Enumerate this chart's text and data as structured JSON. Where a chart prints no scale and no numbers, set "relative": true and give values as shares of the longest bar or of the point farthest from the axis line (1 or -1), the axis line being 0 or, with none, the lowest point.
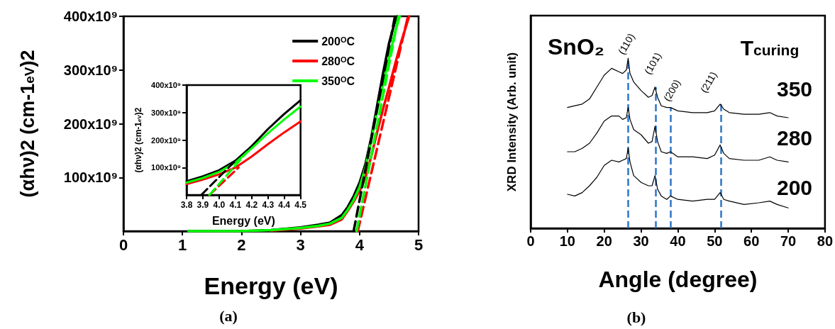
{
  "chart_data": [
    {
      "type": "line",
      "xlabel": "Energy (eV)",
      "ylabel": "(αhν)2 (cm-1$_{eV}$)2",
      "xlim": [
        0,
        5
      ],
      "xticks": [
        0,
        1,
        2,
        3,
        4,
        5
      ],
      "ylim": [
        0,
        400000000000.0
      ],
      "yticks": [
        {
          "value": 100000000000.0,
          "label": "100x10⁹"
        },
        {
          "value": 200000000000.0,
          "label": "200x10⁹"
        },
        {
          "value": 300000000000.0,
          "label": "300x10⁹"
        },
        {
          "value": 400000000000.0,
          "label": "400x10⁹"
        }
      ],
      "legend": "top right",
      "marker": "none",
      "annotations": [
        "(a)"
      ],
      "series": [
        {
          "name": "200$^{O}$C",
          "color": "#000000",
          "x": [
            1.1,
            1.5,
            2,
            2.5,
            3,
            3.3,
            3.5,
            3.7,
            3.8,
            3.9,
            4.0,
            4.1,
            4.2,
            4.3,
            4.4,
            4.5,
            4.6,
            4.64
          ],
          "values": [
            0,
            0,
            0,
            2000000000.0,
            7000000000.0,
            12000000000.0,
            16000000000.0,
            30000000000.0,
            45000000000.0,
            65000000000.0,
            90000000000.0,
            125000000000.0,
            175000000000.0,
            235000000000.0,
            295000000000.0,
            350000000000.0,
            390000000000.0,
            400000000000.0
          ]
        },
        {
          "name": "280$^{O}$C",
          "color": "#ff0000",
          "x": [
            2.5,
            3,
            3.3,
            3.5,
            3.7,
            3.8,
            3.9,
            4.0,
            4.1,
            4.2,
            4.3,
            4.4,
            4.5,
            4.6,
            4.7,
            4.84
          ],
          "values": [
            1000000000.0,
            5000000000.0,
            9000000000.0,
            12000000000.0,
            22000000000.0,
            38000000000.0,
            55000000000.0,
            75000000000.0,
            100000000000.0,
            140000000000.0,
            185000000000.0,
            228000000000.0,
            268000000000.0,
            310000000000.0,
            350000000000.0,
            400000000000.0
          ]
        },
        {
          "name": "350$^{O}$C",
          "color": "#00ff00",
          "x": [
            1.1,
            1.5,
            2,
            2.5,
            3,
            3.3,
            3.5,
            3.7,
            3.8,
            3.9,
            4.0,
            4.1,
            4.2,
            4.3,
            4.4,
            4.5,
            4.6,
            4.68
          ],
          "values": [
            0,
            0,
            0,
            2000000000.0,
            6000000000.0,
            10000000000.0,
            14000000000.0,
            25000000000.0,
            40000000000.0,
            58000000000.0,
            82000000000.0,
            118000000000.0,
            170000000000.0,
            225000000000.0,
            275000000000.0,
            322000000000.0,
            370000000000.0,
            400000000000.0
          ]
        },
        {
          "color": "#000000",
          "line_style": "dashed",
          "x": [
            3.9,
            4.6
          ],
          "values": [
            0,
            400000000000.0
          ]
        },
        {
          "color": "#ff0000",
          "line_style": "dashed",
          "x": [
            3.97,
            4.82
          ],
          "values": [
            0,
            400000000000.0
          ]
        },
        {
          "color": "#00ff00",
          "line_style": "dashed",
          "x": [
            3.95,
            4.66
          ],
          "values": [
            0,
            400000000000.0
          ]
        }
      ]
    },
    {
      "type": "line",
      "xlabel": "Energy (eV)",
      "ylabel": "(αhν)2 (cm-1$_{eV}$)2",
      "xlim": [
        3.8,
        4.5
      ],
      "xticks": [
        3.8,
        3.9,
        {
          "value": 4,
          "label": "4.0"
        },
        4.1,
        4.2,
        4.3,
        4.4,
        4.5
      ],
      "ylim": [
        0,
        400000000000.0
      ],
      "yticks": [
        {
          "value": 100000000000.0,
          "label": "100x10⁹"
        },
        {
          "value": 200000000000.0,
          "label": "200x10⁹"
        },
        {
          "value": 300000000000.0,
          "label": "300x10⁹"
        },
        {
          "value": 400000000000.0,
          "label": "400x10⁹"
        }
      ],
      "marker": "none",
      "series": [
        {
          "color": "#000000",
          "x": [
            3.8,
            3.9,
            4.0,
            4.1,
            4.2,
            4.3,
            4.4,
            4.5
          ],
          "values": [
            50000000000.0,
            68000000000.0,
            90000000000.0,
            125000000000.0,
            178000000000.0,
            240000000000.0,
            295000000000.0,
            345000000000.0
          ]
        },
        {
          "color": "#ff0000",
          "x": [
            3.8,
            3.9,
            4.0,
            4.1,
            4.2,
            4.3,
            4.4,
            4.5
          ],
          "values": [
            40000000000.0,
            56000000000.0,
            75000000000.0,
            100000000000.0,
            140000000000.0,
            185000000000.0,
            228000000000.0,
            268000000000.0
          ]
        },
        {
          "color": "#00ff00",
          "x": [
            3.8,
            3.9,
            4.0,
            4.1,
            4.2,
            4.3,
            4.4,
            4.5
          ],
          "values": [
            45000000000.0,
            62000000000.0,
            84000000000.0,
            118000000000.0,
            170000000000.0,
            225000000000.0,
            275000000000.0,
            322000000000.0
          ]
        },
        {
          "color": "#000000",
          "line_style": "dashed",
          "x": [
            3.89,
            4.1
          ],
          "values": [
            0,
            125000000000.0
          ]
        },
        {
          "color": "#ff0000",
          "line_style": "dashed",
          "x": [
            3.94,
            4.12
          ],
          "values": [
            0,
            100000000000.0
          ]
        },
        {
          "color": "#00ff00",
          "line_style": "dashed",
          "x": [
            3.94,
            4.17
          ],
          "values": [
            0,
            155000000000.0
          ]
        }
      ]
    },
    {
      "type": "line",
      "xlabel": "Angle (degree)",
      "ylabel": "XRD Intensity (Arb. unit)",
      "xlim": [
        0,
        80
      ],
      "xticks": [
        0,
        10,
        20,
        30,
        40,
        50,
        60,
        70,
        80
      ],
      "relative": true,
      "marker": "none",
      "annotations": [
        "SnO₂",
        "T$_{curing}$",
        "(110)",
        "(101)",
        "(200)",
        "(211)",
        "(b)"
      ],
      "x": [
        10,
        12,
        14,
        16,
        18,
        20,
        22,
        24,
        25,
        26,
        26.5,
        27,
        28,
        30,
        32,
        33,
        33.8,
        34.5,
        35.5,
        37,
        38,
        40,
        44,
        48,
        50,
        51.5,
        52.5,
        54,
        58,
        62,
        65,
        67,
        70
      ],
      "ref_lines": [
        {
          "axis": "x",
          "value": 26.5,
          "color": "#2e75c8",
          "line_style": "dashed"
        },
        {
          "axis": "x",
          "value": 34,
          "color": "#2e75c8",
          "line_style": "dashed"
        },
        {
          "axis": "x",
          "value": 38.1,
          "color": "#2e75c8",
          "line_style": "dashed"
        },
        {
          "axis": "x",
          "value": 51.8,
          "color": "#2e75c8",
          "line_style": "dashed"
        }
      ],
      "series": [
        {
          "name": "350",
          "color": "#000000",
          "values": [
            0.71,
            0.72,
            0.73,
            0.76,
            0.83,
            0.9,
            0.94,
            0.92,
            0.91,
            0.93,
            1,
            0.91,
            0.86,
            0.81,
            0.77,
            0.78,
            0.83,
            0.77,
            0.72,
            0.71,
            0.71,
            0.69,
            0.68,
            0.68,
            0.69,
            0.73,
            0.7,
            0.68,
            0.67,
            0.67,
            0.68,
            0.66,
            0.65
          ]
        },
        {
          "name": "280",
          "color": "#000000",
          "values": [
            0.45,
            0.45,
            0.47,
            0.5,
            0.56,
            0.63,
            0.66,
            0.66,
            0.64,
            0.65,
            0.71,
            0.64,
            0.58,
            0.55,
            0.5,
            0.51,
            0.6,
            0.51,
            0.45,
            0.44,
            0.45,
            0.42,
            0.42,
            0.41,
            0.43,
            0.49,
            0.44,
            0.41,
            0.4,
            0.4,
            0.42,
            0.4,
            0.39
          ]
        },
        {
          "name": "200",
          "color": "#000000",
          "values": [
            0.2,
            0.19,
            0.21,
            0.25,
            0.3,
            0.37,
            0.4,
            0.39,
            0.4,
            0.41,
            0.47,
            0.39,
            0.31,
            0.27,
            0.25,
            0.25,
            0.31,
            0.23,
            0.19,
            0.17,
            0.19,
            0.17,
            0.16,
            0.17,
            0.17,
            0.21,
            0.17,
            0.16,
            0.14,
            0.15,
            0.16,
            0.14,
            0.12
          ]
        }
      ]
    }
  ]
}
